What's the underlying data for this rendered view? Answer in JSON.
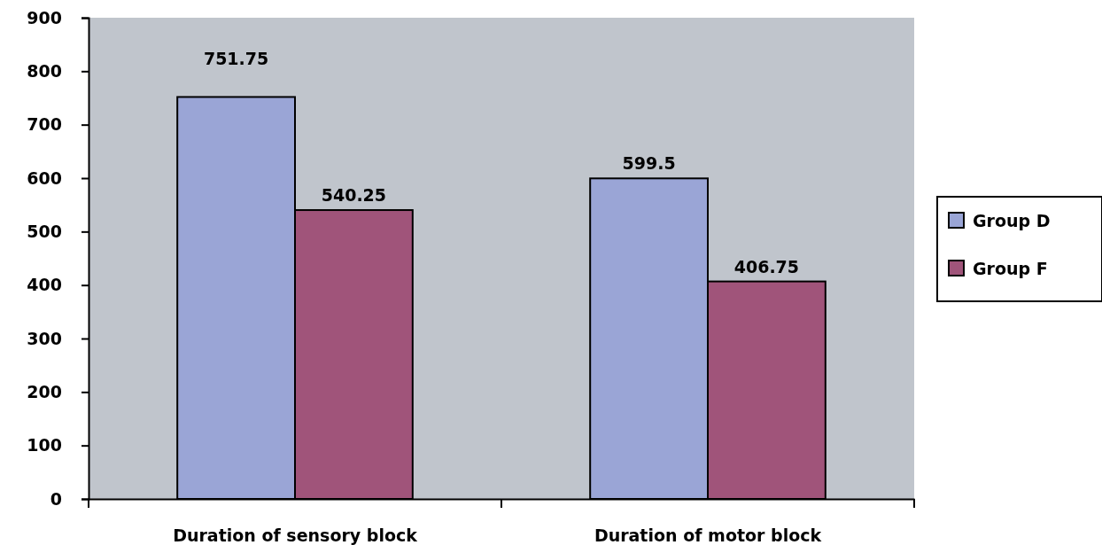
{
  "chart_data": {
    "type": "bar",
    "categories": [
      "Duration of sensory block",
      "Duration of motor block"
    ],
    "series": [
      {
        "name": "Group D",
        "color": "#9aa5d6",
        "values": [
          751.75,
          599.5
        ]
      },
      {
        "name": "Group F",
        "color": "#a0547a",
        "values": [
          540.25,
          406.75
        ]
      }
    ],
    "ylim": [
      0,
      900
    ],
    "yticks": [
      0,
      100,
      200,
      300,
      400,
      500,
      600,
      700,
      800,
      900
    ],
    "data_labels": true,
    "legend": "right"
  }
}
